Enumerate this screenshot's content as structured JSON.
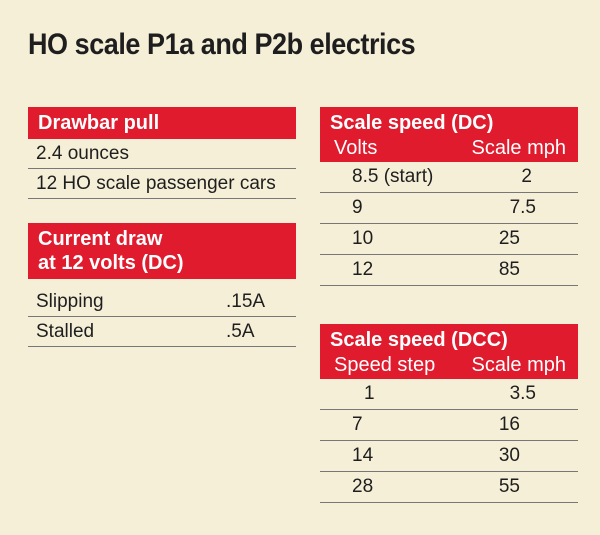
{
  "title": "HO scale P1a and P2b electrics",
  "drawbar": {
    "header": "Drawbar pull",
    "rows": [
      "2.4 ounces",
      "12 HO scale passenger cars"
    ]
  },
  "current": {
    "header_line1": "Current draw",
    "header_line2": "at 12 volts (DC)",
    "rows": [
      {
        "label": "Slipping",
        "value": ".15A"
      },
      {
        "label": "Stalled",
        "value": ".5A"
      }
    ]
  },
  "speed_dc": {
    "header": "Scale speed (DC)",
    "col1": "Volts",
    "col2": "Scale mph",
    "rows": [
      {
        "a": "8.5 (start)",
        "b": "2"
      },
      {
        "a": "9",
        "b": "7.5"
      },
      {
        "a": "10",
        "b": "25"
      },
      {
        "a": "12",
        "b": "85"
      }
    ]
  },
  "speed_dcc": {
    "header": "Scale speed (DCC)",
    "col1": "Speed step",
    "col2": "Scale mph",
    "rows": [
      {
        "a": "1",
        "b": "3.5"
      },
      {
        "a": "7",
        "b": "16"
      },
      {
        "a": "14",
        "b": "30"
      },
      {
        "a": "28",
        "b": "55"
      }
    ]
  }
}
